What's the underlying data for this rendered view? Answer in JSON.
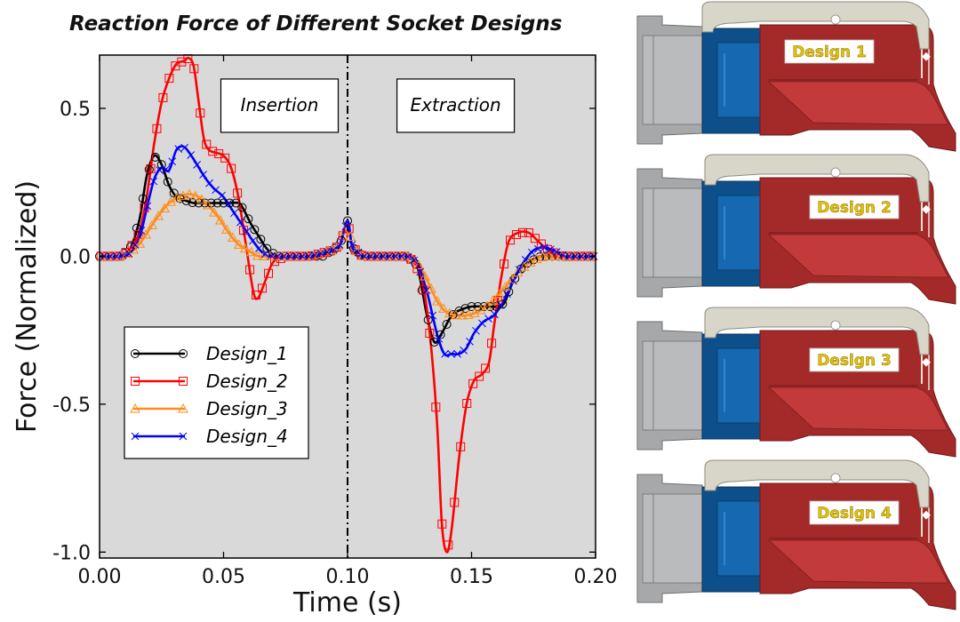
{
  "chart_data": {
    "type": "line",
    "title": "Reaction Force of Different Socket Designs",
    "xlabel": "Time (s)",
    "ylabel": "Force (Normalized)",
    "xlim": [
      0.0,
      0.2
    ],
    "ylim": [
      -1.02,
      0.68
    ],
    "x_ticks": [
      0.0,
      0.05,
      0.1,
      0.15,
      0.2
    ],
    "x_tick_labels": [
      "0.00",
      "0.05",
      "0.10",
      "0.15",
      "0.20"
    ],
    "y_ticks": [
      -1.0,
      -0.5,
      0.0,
      0.5
    ],
    "y_tick_labels": [
      "-1.0",
      "-0.5",
      "0.0",
      "0.5"
    ],
    "grid": false,
    "background": "#d9d9d9",
    "divider_x": 0.1,
    "annotations": [
      {
        "text": "Insertion",
        "x": 0.05,
        "y": 0.5
      },
      {
        "text": "Extraction",
        "x": 0.121,
        "y": 0.5
      }
    ],
    "legend_position": "bottom-left",
    "series": [
      {
        "name": "Design_1",
        "color": "#000000",
        "marker": "circle",
        "points": [
          [
            0,
            0
          ],
          [
            0.008,
            0
          ],
          [
            0.012,
            0.02
          ],
          [
            0.016,
            0.12
          ],
          [
            0.019,
            0.27
          ],
          [
            0.022,
            0.34
          ],
          [
            0.025,
            0.31
          ],
          [
            0.028,
            0.24
          ],
          [
            0.031,
            0.2
          ],
          [
            0.034,
            0.19
          ],
          [
            0.038,
            0.18
          ],
          [
            0.042,
            0.18
          ],
          [
            0.047,
            0.18
          ],
          [
            0.052,
            0.18
          ],
          [
            0.056,
            0.18
          ],
          [
            0.058,
            0.16
          ],
          [
            0.061,
            0.11
          ],
          [
            0.064,
            0.07
          ],
          [
            0.068,
            0.02
          ],
          [
            0.072,
            0
          ],
          [
            0.08,
            0
          ],
          [
            0.085,
            0
          ],
          [
            0.09,
            0
          ],
          [
            0.094,
            0.02
          ],
          [
            0.097,
            0.04
          ],
          [
            0.1,
            0.12
          ],
          [
            0.102,
            0.03
          ],
          [
            0.106,
            0
          ],
          [
            0.115,
            0
          ],
          [
            0.124,
            0
          ],
          [
            0.128,
            -0.03
          ],
          [
            0.132,
            -0.2
          ],
          [
            0.135,
            -0.29
          ],
          [
            0.138,
            -0.26
          ],
          [
            0.142,
            -0.2
          ],
          [
            0.146,
            -0.18
          ],
          [
            0.15,
            -0.17
          ],
          [
            0.155,
            -0.17
          ],
          [
            0.16,
            -0.17
          ],
          [
            0.163,
            -0.16
          ],
          [
            0.166,
            -0.1
          ],
          [
            0.169,
            -0.05
          ],
          [
            0.173,
            -0.02
          ],
          [
            0.178,
            0
          ],
          [
            0.185,
            0
          ],
          [
            0.2,
            0
          ]
        ]
      },
      {
        "name": "Design_2",
        "color": "#ff0000",
        "marker": "square",
        "points": [
          [
            0,
            0
          ],
          [
            0.008,
            0
          ],
          [
            0.012,
            0.02
          ],
          [
            0.016,
            0.08
          ],
          [
            0.019,
            0.2
          ],
          [
            0.022,
            0.38
          ],
          [
            0.025,
            0.52
          ],
          [
            0.028,
            0.6
          ],
          [
            0.031,
            0.65
          ],
          [
            0.034,
            0.66
          ],
          [
            0.036,
            0.67
          ],
          [
            0.038,
            0.64
          ],
          [
            0.04,
            0.52
          ],
          [
            0.042,
            0.4
          ],
          [
            0.044,
            0.36
          ],
          [
            0.047,
            0.35
          ],
          [
            0.05,
            0.34
          ],
          [
            0.053,
            0.3
          ],
          [
            0.056,
            0.2
          ],
          [
            0.059,
            0.04
          ],
          [
            0.062,
            -0.12
          ],
          [
            0.064,
            -0.14
          ],
          [
            0.067,
            -0.08
          ],
          [
            0.07,
            -0.02
          ],
          [
            0.075,
            0
          ],
          [
            0.085,
            0
          ],
          [
            0.094,
            0.02
          ],
          [
            0.097,
            0.04
          ],
          [
            0.1,
            0.12
          ],
          [
            0.102,
            0.03
          ],
          [
            0.106,
            0
          ],
          [
            0.115,
            0
          ],
          [
            0.124,
            0
          ],
          [
            0.127,
            -0.02
          ],
          [
            0.13,
            -0.08
          ],
          [
            0.133,
            -0.25
          ],
          [
            0.136,
            -0.55
          ],
          [
            0.138,
            -0.9
          ],
          [
            0.14,
            -1.0
          ],
          [
            0.142,
            -0.92
          ],
          [
            0.145,
            -0.68
          ],
          [
            0.148,
            -0.5
          ],
          [
            0.151,
            -0.42
          ],
          [
            0.154,
            -0.4
          ],
          [
            0.157,
            -0.36
          ],
          [
            0.159,
            -0.24
          ],
          [
            0.162,
            -0.07
          ],
          [
            0.165,
            0.05
          ],
          [
            0.169,
            0.08
          ],
          [
            0.173,
            0.08
          ],
          [
            0.177,
            0.05
          ],
          [
            0.181,
            0.02
          ],
          [
            0.186,
            0
          ],
          [
            0.2,
            0
          ]
        ]
      },
      {
        "name": "Design_3",
        "color": "#ff8c1a",
        "marker": "triangle",
        "points": [
          [
            0,
            0
          ],
          [
            0.008,
            0
          ],
          [
            0.012,
            0.01
          ],
          [
            0.016,
            0.04
          ],
          [
            0.02,
            0.09
          ],
          [
            0.024,
            0.14
          ],
          [
            0.028,
            0.18
          ],
          [
            0.032,
            0.2
          ],
          [
            0.036,
            0.21
          ],
          [
            0.04,
            0.2
          ],
          [
            0.044,
            0.17
          ],
          [
            0.048,
            0.13
          ],
          [
            0.052,
            0.08
          ],
          [
            0.056,
            0.04
          ],
          [
            0.06,
            0.02
          ],
          [
            0.064,
            0
          ],
          [
            0.07,
            0
          ],
          [
            0.085,
            0
          ],
          [
            0.094,
            0.02
          ],
          [
            0.097,
            0.04
          ],
          [
            0.1,
            0.12
          ],
          [
            0.102,
            0.03
          ],
          [
            0.106,
            0
          ],
          [
            0.12,
            0
          ],
          [
            0.124,
            0
          ],
          [
            0.128,
            -0.02
          ],
          [
            0.132,
            -0.08
          ],
          [
            0.136,
            -0.15
          ],
          [
            0.14,
            -0.19
          ],
          [
            0.144,
            -0.2
          ],
          [
            0.148,
            -0.2
          ],
          [
            0.152,
            -0.19
          ],
          [
            0.156,
            -0.17
          ],
          [
            0.16,
            -0.14
          ],
          [
            0.164,
            -0.1
          ],
          [
            0.168,
            -0.06
          ],
          [
            0.172,
            -0.03
          ],
          [
            0.176,
            -0.01
          ],
          [
            0.18,
            0
          ],
          [
            0.2,
            0
          ]
        ]
      },
      {
        "name": "Design_4",
        "color": "#0000ff",
        "marker": "cross",
        "points": [
          [
            0,
            0
          ],
          [
            0.008,
            0
          ],
          [
            0.012,
            0.01
          ],
          [
            0.016,
            0.06
          ],
          [
            0.019,
            0.16
          ],
          [
            0.022,
            0.26
          ],
          [
            0.025,
            0.3
          ],
          [
            0.028,
            0.29
          ],
          [
            0.031,
            0.36
          ],
          [
            0.034,
            0.37
          ],
          [
            0.037,
            0.34
          ],
          [
            0.04,
            0.3
          ],
          [
            0.043,
            0.26
          ],
          [
            0.046,
            0.23
          ],
          [
            0.05,
            0.2
          ],
          [
            0.054,
            0.15
          ],
          [
            0.058,
            0.1
          ],
          [
            0.062,
            0.05
          ],
          [
            0.066,
            0.01
          ],
          [
            0.07,
            0
          ],
          [
            0.085,
            0
          ],
          [
            0.094,
            0.02
          ],
          [
            0.097,
            0.04
          ],
          [
            0.1,
            0.12
          ],
          [
            0.102,
            0.03
          ],
          [
            0.106,
            0
          ],
          [
            0.124,
            0
          ],
          [
            0.128,
            -0.02
          ],
          [
            0.132,
            -0.12
          ],
          [
            0.136,
            -0.26
          ],
          [
            0.139,
            -0.33
          ],
          [
            0.142,
            -0.33
          ],
          [
            0.145,
            -0.33
          ],
          [
            0.148,
            -0.31
          ],
          [
            0.151,
            -0.26
          ],
          [
            0.155,
            -0.22
          ],
          [
            0.159,
            -0.2
          ],
          [
            0.163,
            -0.15
          ],
          [
            0.167,
            -0.08
          ],
          [
            0.171,
            -0.02
          ],
          [
            0.175,
            0.02
          ],
          [
            0.179,
            0.03
          ],
          [
            0.183,
            0.02
          ],
          [
            0.188,
            0
          ],
          [
            0.2,
            0
          ]
        ]
      }
    ]
  },
  "designs_panel": {
    "colors": {
      "latch": "#d8d6c8",
      "housing": "#a42a2a",
      "sleeve": "#0d4f8a",
      "plug": "#a6a8aa",
      "label_text": "#e6c200"
    },
    "items": [
      {
        "label": "Design 1"
      },
      {
        "label": "Design 2"
      },
      {
        "label": "Design 3"
      },
      {
        "label": "Design 4"
      }
    ]
  }
}
